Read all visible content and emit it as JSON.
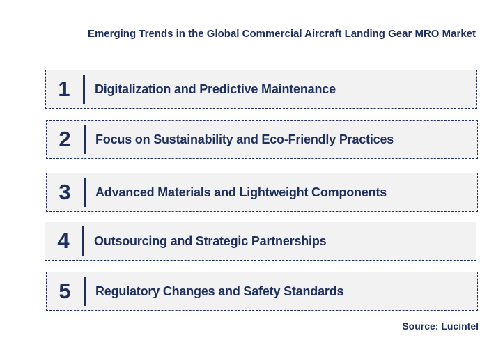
{
  "title": "Emerging Trends in the Global Commercial Aircraft Landing Gear MRO Market",
  "trends": [
    {
      "number": "1",
      "label": "Digitalization and Predictive Maintenance"
    },
    {
      "number": "2",
      "label": "Focus on Sustainability and Eco-Friendly Practices"
    },
    {
      "number": "3",
      "label": "Advanced Materials and Lightweight Components"
    },
    {
      "number": "4",
      "label": "Outsourcing and Strategic Partnerships"
    },
    {
      "number": "5",
      "label": "Regulatory Changes and Safety Standards"
    }
  ],
  "source": "Source: Lucintel",
  "colors": {
    "text": "#1f2f5c",
    "box_background": "#f2f2f2",
    "border": "#1f2f5c"
  }
}
